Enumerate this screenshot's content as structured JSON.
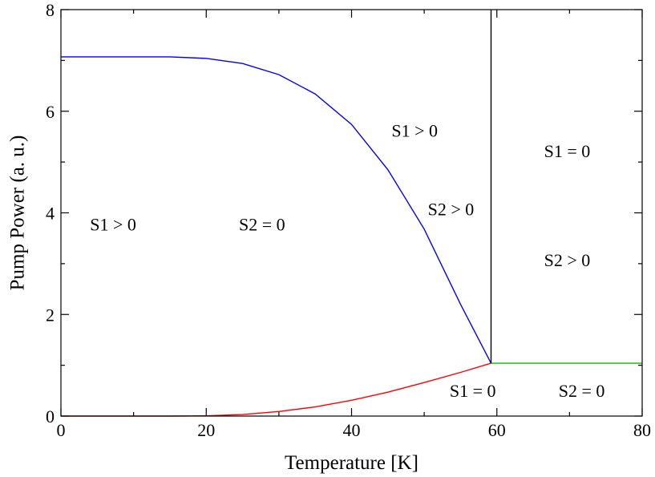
{
  "chart_data": {
    "type": "line",
    "title": "",
    "xlabel": "Temperature [K]",
    "ylabel": "Pump Power (a. u.)",
    "xlim": [
      0,
      80
    ],
    "ylim": [
      0,
      8
    ],
    "xticks": [
      0,
      20,
      40,
      60,
      80
    ],
    "yticks": [
      0,
      2,
      4,
      6,
      8
    ],
    "x_minor_step": 10,
    "y_minor_step": 1,
    "grid": false,
    "series": [
      {
        "color": "#0000ff",
        "x": [
          0,
          5,
          10,
          15,
          20,
          25,
          30,
          35,
          40,
          45,
          50,
          55,
          59.2
        ],
        "y": [
          7.07,
          7.07,
          7.07,
          7.07,
          7.04,
          6.94,
          6.72,
          6.34,
          5.74,
          4.85,
          3.68,
          2.2,
          1.04
        ]
      },
      {
        "color": "#ff0000",
        "x": [
          0,
          10,
          15,
          20,
          25,
          30,
          35,
          40,
          45,
          50,
          55,
          59.2
        ],
        "y": [
          0,
          0,
          0,
          0.005,
          0.03,
          0.09,
          0.18,
          0.31,
          0.47,
          0.66,
          0.86,
          1.04
        ]
      },
      {
        "color": "#00c000",
        "x": [
          59.2,
          80
        ],
        "y": [
          1.04,
          1.04
        ]
      },
      {
        "color": "#000000",
        "x": [
          59.2,
          59.2
        ],
        "y": [
          1.04,
          8
        ]
      }
    ],
    "annotations": [
      {
        "text": "S1 > 0",
        "x": 4,
        "y": 3.65
      },
      {
        "text": "S2 = 0",
        "x": 24.5,
        "y": 3.65
      },
      {
        "text": "S1 > 0",
        "x": 45.5,
        "y": 5.5
      },
      {
        "text": "S2 > 0",
        "x": 50.5,
        "y": 3.95
      },
      {
        "text": "S1 = 0",
        "x": 66.5,
        "y": 5.1
      },
      {
        "text": "S2 > 0",
        "x": 66.5,
        "y": 2.95
      },
      {
        "text": "S1 = 0",
        "x": 53.5,
        "y": 0.38
      },
      {
        "text": "S2 = 0",
        "x": 68.5,
        "y": 0.38
      }
    ]
  }
}
